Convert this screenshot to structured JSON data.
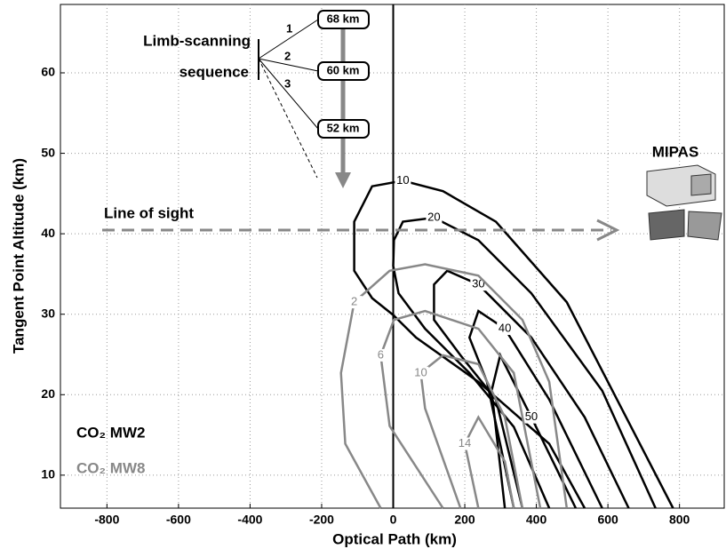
{
  "chart_data": {
    "type": "contour",
    "xlabel": "Optical Path (km)",
    "ylabel": "Tangent Point Altitude (km)",
    "xlim": [
      -930,
      925
    ],
    "ylim": [
      5.9,
      68.5
    ],
    "xticks": [
      -800,
      -600,
      -400,
      -200,
      0,
      200,
      400,
      600,
      800
    ],
    "yticks": [
      10,
      20,
      30,
      40,
      50,
      60
    ],
    "grid": true,
    "series": [
      {
        "name": "CO₂ MW2",
        "color": "#000000",
        "contours": [
          {
            "level": 10,
            "x": [
              782,
              485,
              287,
              139,
              27,
              -59,
              -109,
              -109,
              -59,
              0,
              64,
              238,
              436,
              535
            ],
            "y": [
              5.9,
              31.5,
              41.5,
              45.3,
              46.6,
              45.9,
              41.5,
              35.4,
              32,
              29.9,
              27.1,
              21.6,
              13.9,
              5.9
            ]
          },
          {
            "level": 20,
            "x": [
              733,
              584,
              386,
              238,
              114,
              27,
              2,
              0,
              15,
              89,
              213,
              337,
              436
            ],
            "y": [
              5.9,
              20.5,
              32.6,
              39.2,
              42,
              41.5,
              39.2,
              36,
              32.6,
              28.2,
              22.7,
              16,
              5.9
            ]
          },
          {
            "level": 30,
            "x": [
              658,
              535,
              386,
              238,
              151,
              114,
              114,
              188,
              287,
              361
            ],
            "y": [
              5.9,
              17.2,
              27.1,
              33.7,
              35.4,
              33.7,
              29.3,
              24.9,
              19.4,
              5.9
            ]
          },
          {
            "level": 40,
            "x": [
              584,
              436,
              312,
              238,
              213,
              262,
              337
            ],
            "y": [
              5.9,
              19.4,
              28.2,
              30.4,
              27.1,
              21.6,
              5.9
            ]
          },
          {
            "level": 50,
            "x": [
              510,
              386,
              299,
              275,
              312
            ],
            "y": [
              5.9,
              17.2,
              24.9,
              20.5,
              5.9
            ]
          }
        ]
      },
      {
        "name": "CO₂ MW8",
        "color": "#888888",
        "contours": [
          {
            "level": 2,
            "x": [
              -35,
              -134,
              -146,
              -109,
              -10,
              89,
              238,
              361,
              436,
              485
            ],
            "y": [
              5.9,
              13.9,
              22.7,
              31.5,
              35.4,
              36.2,
              34.8,
              29.3,
              21.6,
              5.9
            ]
          },
          {
            "level": 6,
            "x": [
              139,
              -10,
              -35,
              2,
              89,
              238,
              337,
              411
            ],
            "y": [
              5.9,
              16.1,
              24.9,
              29.3,
              30.4,
              28.2,
              22.7,
              5.9
            ]
          },
          {
            "level": 10,
            "x": [
              188,
              89,
              77,
              139,
              238,
              312,
              361
            ],
            "y": [
              5.9,
              18.3,
              22.7,
              24.9,
              23.8,
              17.2,
              5.9
            ]
          },
          {
            "level": 14,
            "x": [
              238,
              200,
              238,
              312,
              337
            ],
            "y": [
              5.9,
              13.9,
              17.2,
              11.7,
              5.9
            ]
          }
        ]
      }
    ],
    "annotations": {
      "limb_title_1": "Limb-scanning",
      "limb_title_2": "sequence",
      "steps": [
        "1",
        "2",
        "3"
      ],
      "altitudes": [
        "68 km",
        "60 km",
        "52 km"
      ],
      "line_of_sight": "Line of sight",
      "instrument": "MIPAS"
    }
  }
}
